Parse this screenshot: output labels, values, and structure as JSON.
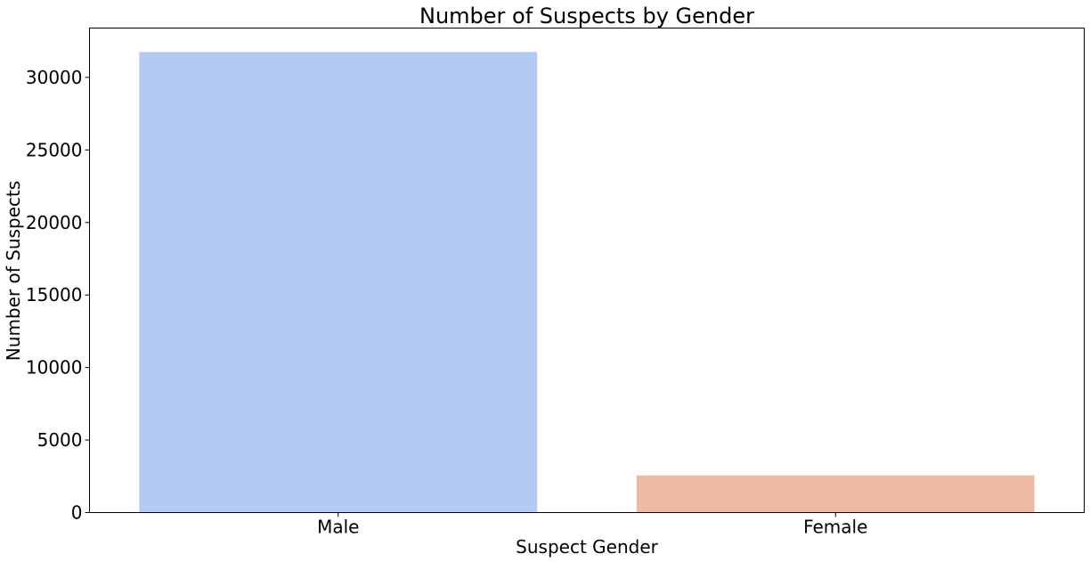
{
  "chart_data": {
    "type": "bar",
    "title": "Number of Suspects by Gender",
    "xlabel": "Suspect Gender",
    "ylabel": "Number of Suspects",
    "categories": [
      "Male",
      "Female"
    ],
    "values": [
      31750,
      2560
    ],
    "colors": [
      "#b5caf2",
      "#edbba3"
    ],
    "ylim": [
      0,
      33400
    ],
    "yticks": [
      0,
      5000,
      10000,
      15000,
      20000,
      25000,
      30000
    ],
    "grid": false,
    "legend": "none"
  }
}
